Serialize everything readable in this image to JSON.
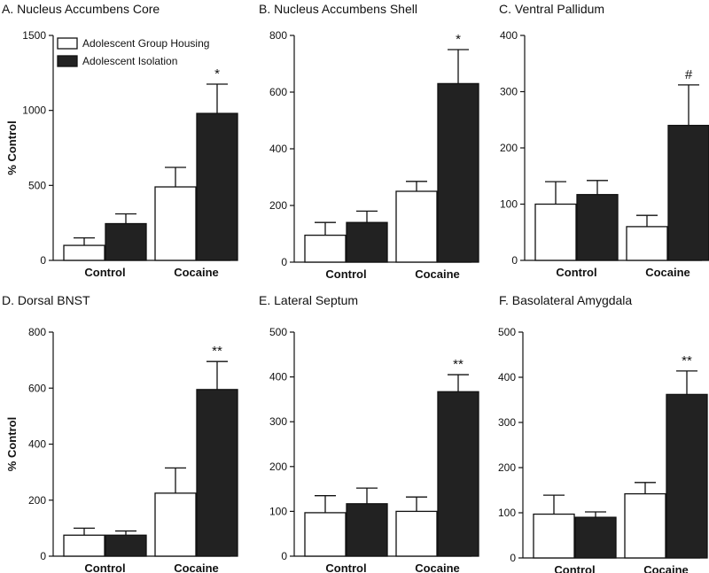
{
  "figure": {
    "legend": [
      {
        "name": "Adolescent Group Housing",
        "color": "#ffffff"
      },
      {
        "name": "Adolescent Isolation",
        "color": "#222222"
      }
    ],
    "ylabel": "% Control"
  },
  "chart_data": [
    {
      "type": "bar",
      "title": "A. Nucleus Accumbens Core",
      "categories": [
        "Control",
        "Cocaine"
      ],
      "series": [
        {
          "name": "Adolescent Group Housing",
          "values": [
            100,
            490
          ],
          "errors": [
            50,
            130
          ]
        },
        {
          "name": "Adolescent Isolation",
          "values": [
            245,
            980
          ],
          "errors": [
            65,
            195
          ]
        }
      ],
      "annotations": [
        "",
        "*"
      ],
      "ylim": [
        0,
        1500
      ],
      "yticks": [
        0,
        500,
        1000,
        1500
      ],
      "ylabel": "% Control",
      "xlabel": ""
    },
    {
      "type": "bar",
      "title": "B. Nucleus Accumbens Shell",
      "categories": [
        "Control",
        "Cocaine"
      ],
      "series": [
        {
          "name": "Adolescent Group Housing",
          "values": [
            95,
            250
          ],
          "errors": [
            45,
            35
          ]
        },
        {
          "name": "Adolescent Isolation",
          "values": [
            140,
            630
          ],
          "errors": [
            40,
            120
          ]
        }
      ],
      "annotations": [
        "",
        "*"
      ],
      "ylim": [
        0,
        800
      ],
      "yticks": [
        0,
        200,
        400,
        600,
        800
      ],
      "ylabel": "",
      "xlabel": ""
    },
    {
      "type": "bar",
      "title": "C. Ventral Pallidum",
      "categories": [
        "Control",
        "Cocaine"
      ],
      "series": [
        {
          "name": "Adolescent Group Housing",
          "values": [
            100,
            60
          ],
          "errors": [
            40,
            20
          ]
        },
        {
          "name": "Adolescent Isolation",
          "values": [
            117,
            240
          ],
          "errors": [
            25,
            72
          ]
        }
      ],
      "annotations": [
        "",
        "#"
      ],
      "ylim": [
        0,
        400
      ],
      "yticks": [
        0,
        100,
        200,
        300,
        400
      ],
      "ylabel": "",
      "xlabel": ""
    },
    {
      "type": "bar",
      "title": "D. Dorsal BNST",
      "categories": [
        "Control",
        "Cocaine"
      ],
      "series": [
        {
          "name": "Adolescent Group Housing",
          "values": [
            75,
            225
          ],
          "errors": [
            25,
            90
          ]
        },
        {
          "name": "Adolescent Isolation",
          "values": [
            75,
            595
          ],
          "errors": [
            15,
            100
          ]
        }
      ],
      "annotations": [
        "",
        "**"
      ],
      "ylim": [
        0,
        800
      ],
      "yticks": [
        0,
        200,
        400,
        600,
        800
      ],
      "ylabel": "% Control",
      "xlabel": ""
    },
    {
      "type": "bar",
      "title": "E. Lateral Septum",
      "categories": [
        "Control",
        "Cocaine"
      ],
      "series": [
        {
          "name": "Adolescent Group Housing",
          "values": [
            97,
            100
          ],
          "errors": [
            38,
            32
          ]
        },
        {
          "name": "Adolescent Isolation",
          "values": [
            117,
            367
          ],
          "errors": [
            35,
            38
          ]
        }
      ],
      "annotations": [
        "",
        "**"
      ],
      "ylim": [
        0,
        500
      ],
      "yticks": [
        0,
        100,
        200,
        300,
        400,
        500
      ],
      "ylabel": "",
      "xlabel": ""
    },
    {
      "type": "bar",
      "title": "F. Basolateral Amygdala",
      "categories": [
        "Control",
        "Cocaine"
      ],
      "series": [
        {
          "name": "Adolescent Group Housing",
          "values": [
            97,
            142
          ],
          "errors": [
            42,
            25
          ]
        },
        {
          "name": "Adolescent Isolation",
          "values": [
            90,
            362
          ],
          "errors": [
            12,
            52
          ]
        }
      ],
      "annotations": [
        "",
        "**"
      ],
      "ylim": [
        0,
        500
      ],
      "yticks": [
        0,
        100,
        200,
        300,
        400,
        500
      ],
      "ylabel": "",
      "xlabel": ""
    }
  ]
}
